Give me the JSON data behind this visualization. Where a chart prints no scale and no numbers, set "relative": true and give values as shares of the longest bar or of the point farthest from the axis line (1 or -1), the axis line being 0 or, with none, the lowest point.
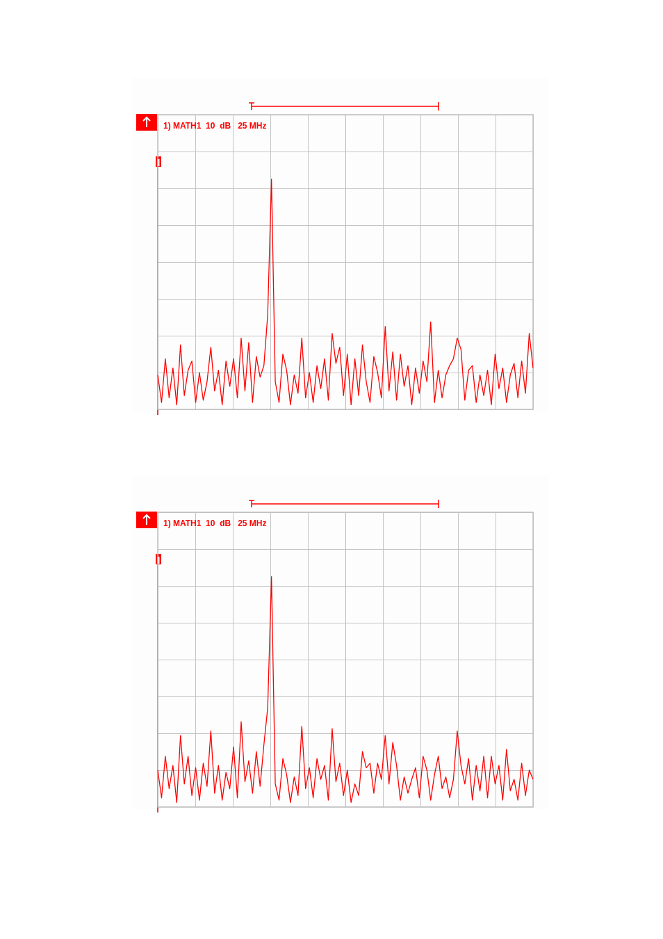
{
  "chart_data": [
    {
      "type": "line",
      "title": "1) MATH1  10  dB   25 MHz",
      "relative": true,
      "grid": true,
      "marker": "none",
      "categories": [
        null,
        null,
        null,
        null,
        null,
        null,
        null,
        null,
        null,
        null,
        null,
        null,
        null,
        null,
        null,
        null,
        null,
        null,
        null,
        null,
        null,
        null,
        null,
        null,
        null,
        null,
        null,
        null,
        null,
        null,
        null,
        null,
        null,
        null,
        null,
        null,
        null,
        null,
        null,
        null,
        null,
        null,
        null,
        null,
        null,
        null,
        null,
        null,
        null,
        null,
        null,
        null,
        null,
        null,
        null,
        null,
        null,
        null,
        null,
        null,
        null,
        null,
        null,
        null,
        null,
        null,
        null,
        null,
        null,
        null,
        null,
        null,
        null,
        null,
        null,
        null,
        null,
        null,
        null,
        null,
        null,
        null,
        null,
        null,
        null,
        null,
        null,
        null,
        null,
        null,
        null,
        null,
        null,
        null,
        null,
        null,
        null,
        null,
        null,
        null
      ],
      "series": [
        {
          "color": "#ff0000",
          "values": [
            0.15,
            0.03,
            0.22,
            0.05,
            0.18,
            0.02,
            0.28,
            0.06,
            0.17,
            0.21,
            0.03,
            0.16,
            0.04,
            0.12,
            0.27,
            0.08,
            0.17,
            0.02,
            0.21,
            0.1,
            0.22,
            0.05,
            0.31,
            0.08,
            0.29,
            0.03,
            0.23,
            0.14,
            0.19,
            0.41,
            1.0,
            0.12,
            0.03,
            0.24,
            0.17,
            0.02,
            0.15,
            0.07,
            0.31,
            0.05,
            0.16,
            0.03,
            0.19,
            0.09,
            0.22,
            0.04,
            0.33,
            0.2,
            0.27,
            0.06,
            0.24,
            0.02,
            0.22,
            0.06,
            0.28,
            0.12,
            0.03,
            0.23,
            0.16,
            0.05,
            0.36,
            0.08,
            0.25,
            0.04,
            0.24,
            0.1,
            0.19,
            0.02,
            0.18,
            0.07,
            0.21,
            0.12,
            0.38,
            0.03,
            0.17,
            0.05,
            0.15,
            0.19,
            0.22,
            0.31,
            0.26,
            0.04,
            0.17,
            0.19,
            0.03,
            0.15,
            0.06,
            0.17,
            0.02,
            0.24,
            0.09,
            0.18,
            0.03,
            0.15,
            0.2,
            0.05,
            0.21,
            0.07,
            0.33,
            0.18
          ]
        }
      ]
    },
    {
      "type": "line",
      "title": "1) MATH1  10  dB   25 MHz",
      "relative": true,
      "grid": true,
      "marker": "none",
      "categories": [
        null,
        null,
        null,
        null,
        null,
        null,
        null,
        null,
        null,
        null,
        null,
        null,
        null,
        null,
        null,
        null,
        null,
        null,
        null,
        null,
        null,
        null,
        null,
        null,
        null,
        null,
        null,
        null,
        null,
        null,
        null,
        null,
        null,
        null,
        null,
        null,
        null,
        null,
        null,
        null,
        null,
        null,
        null,
        null,
        null,
        null,
        null,
        null,
        null,
        null,
        null,
        null,
        null,
        null,
        null,
        null,
        null,
        null,
        null,
        null,
        null,
        null,
        null,
        null,
        null,
        null,
        null,
        null,
        null,
        null,
        null,
        null,
        null,
        null,
        null,
        null,
        null,
        null,
        null,
        null,
        null,
        null,
        null,
        null,
        null,
        null,
        null,
        null,
        null,
        null,
        null,
        null,
        null,
        null,
        null,
        null,
        null,
        null,
        null,
        null
      ],
      "series": [
        {
          "color": "#ff0000",
          "values": [
            0.16,
            0.04,
            0.22,
            0.08,
            0.18,
            0.02,
            0.31,
            0.1,
            0.22,
            0.05,
            0.17,
            0.03,
            0.19,
            0.09,
            0.33,
            0.06,
            0.18,
            0.03,
            0.15,
            0.08,
            0.26,
            0.04,
            0.37,
            0.11,
            0.2,
            0.06,
            0.24,
            0.09,
            0.27,
            0.43,
            1.0,
            0.1,
            0.03,
            0.21,
            0.14,
            0.02,
            0.13,
            0.05,
            0.35,
            0.08,
            0.17,
            0.04,
            0.21,
            0.12,
            0.18,
            0.03,
            0.34,
            0.11,
            0.19,
            0.05,
            0.16,
            0.02,
            0.1,
            0.05,
            0.24,
            0.17,
            0.19,
            0.06,
            0.19,
            0.12,
            0.31,
            0.1,
            0.28,
            0.18,
            0.03,
            0.13,
            0.06,
            0.12,
            0.17,
            0.04,
            0.22,
            0.16,
            0.03,
            0.14,
            0.22,
            0.08,
            0.13,
            0.04,
            0.12,
            0.33,
            0.18,
            0.1,
            0.21,
            0.03,
            0.18,
            0.07,
            0.22,
            0.04,
            0.22,
            0.1,
            0.18,
            0.03,
            0.25,
            0.07,
            0.12,
            0.03,
            0.19,
            0.05,
            0.16,
            0.12
          ]
        }
      ]
    }
  ]
}
